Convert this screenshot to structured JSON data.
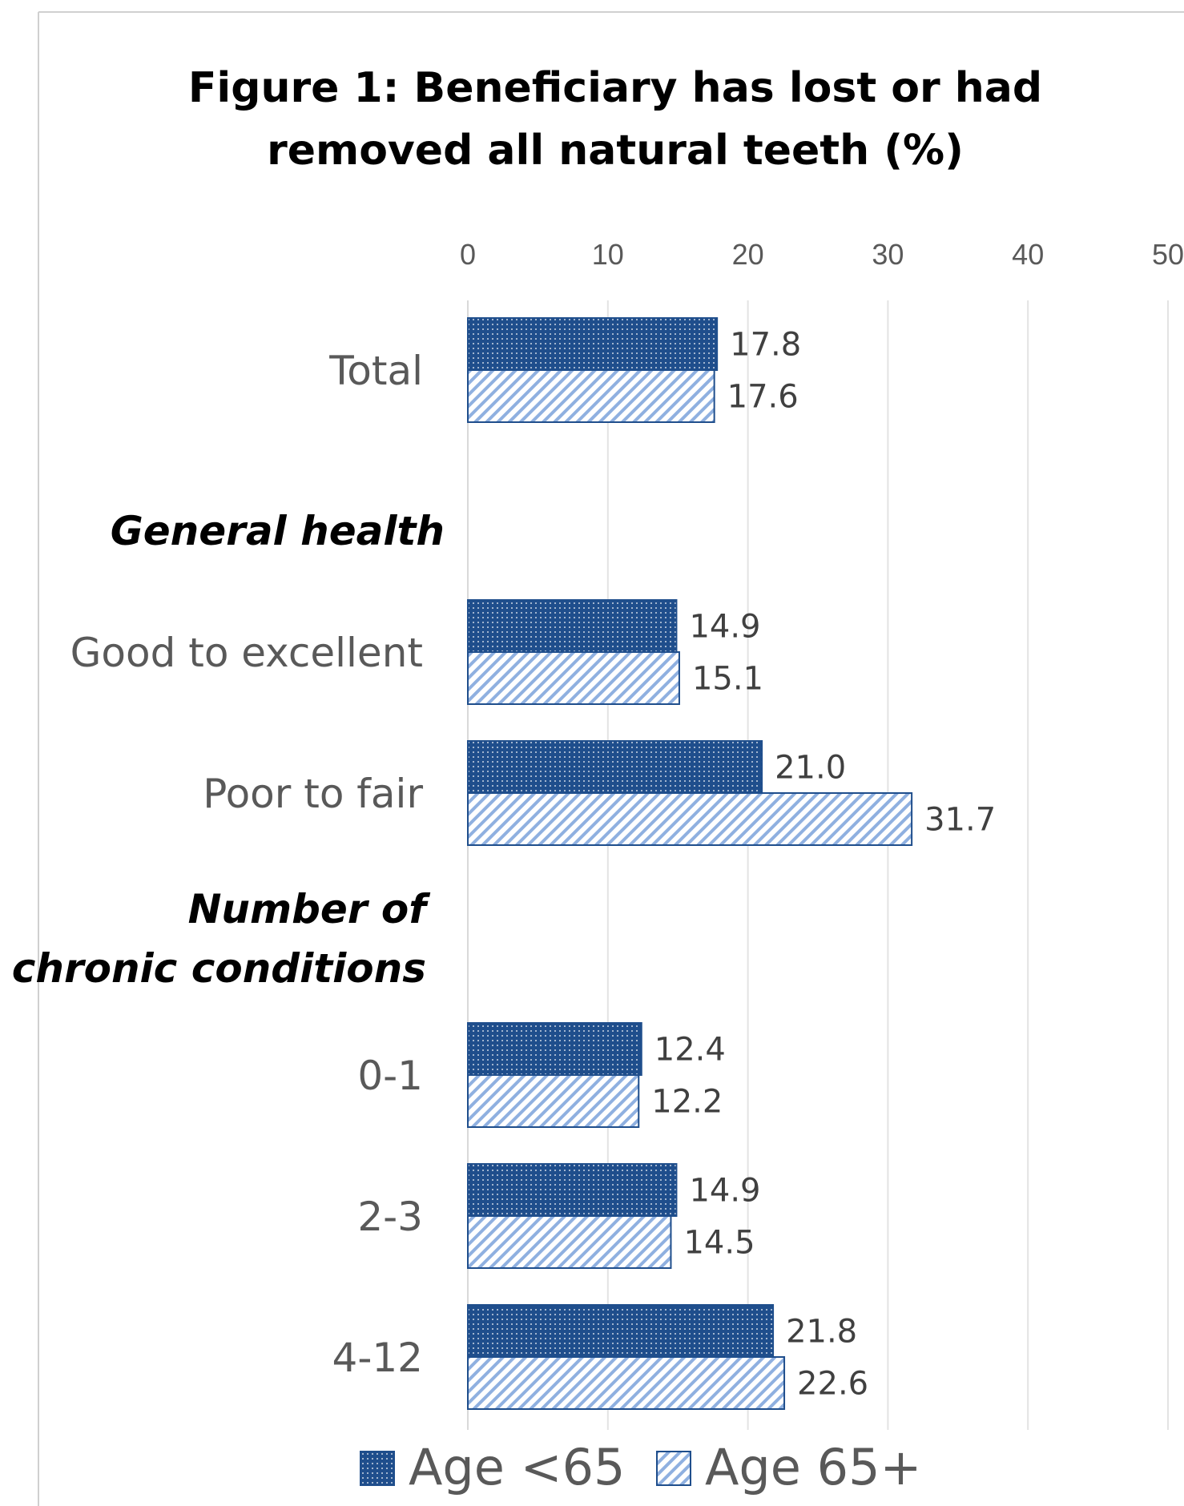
{
  "chart_data": {
    "type": "bar",
    "orientation": "horizontal",
    "title": "Figure 1: Beneficiary has lost or had removed all natural teeth (%)",
    "title_lines": [
      "Figure 1: Beneficiary has lost or had",
      "removed all natural teeth (%)"
    ],
    "xlim": [
      0,
      50
    ],
    "x_ticks": [
      "0",
      "10",
      "20",
      "30",
      "40",
      "50"
    ],
    "x_axis_position": "top",
    "grid": true,
    "legend": {
      "position": "bottom"
    },
    "section_headers": [
      {
        "lines": [
          "General health"
        ]
      },
      {
        "lines": [
          "Number of",
          "chronic conditions"
        ]
      }
    ],
    "categories": [
      "Total",
      "Good to excellent",
      "Poor to fair",
      "0-1",
      "2-3",
      "4-12"
    ],
    "series": [
      {
        "name": "Age <65",
        "color": "#1f4e8c",
        "pattern": "dots",
        "values": [
          17.8,
          14.9,
          21.0,
          12.4,
          14.9,
          21.8
        ],
        "labels": [
          "17.8",
          "14.9",
          "21.0",
          "12.4",
          "14.9",
          "21.8"
        ]
      },
      {
        "name": "Age 65+",
        "color": "#8fb0e0",
        "pattern": "diagonal-stripes",
        "values": [
          17.6,
          15.1,
          31.7,
          12.2,
          14.5,
          22.6
        ],
        "labels": [
          "17.6",
          "15.1",
          "31.7",
          "12.2",
          "14.5",
          "22.6"
        ]
      }
    ]
  }
}
